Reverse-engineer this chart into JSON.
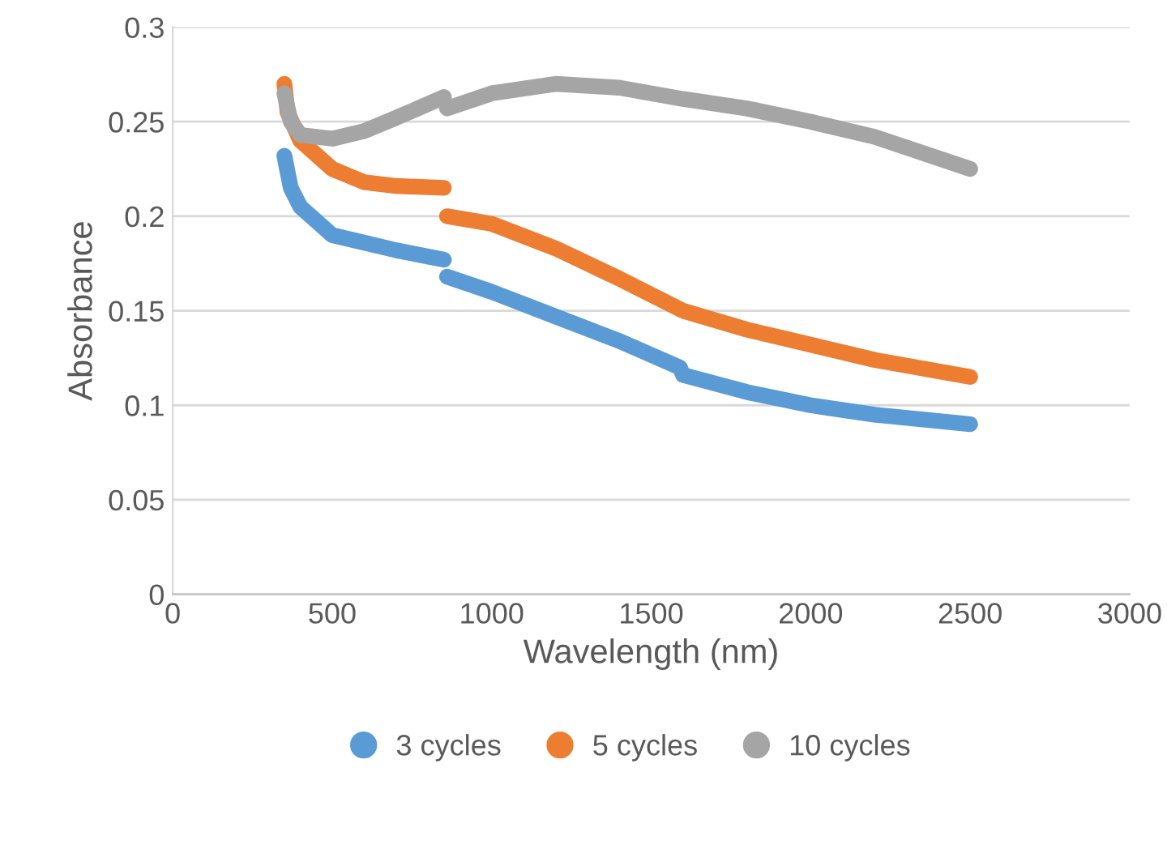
{
  "chart_data": {
    "type": "line",
    "xlabel": "Wavelength (nm)",
    "ylabel": "Absorbance",
    "xlim": [
      0,
      3000
    ],
    "xticks": [
      0,
      500,
      1000,
      1500,
      2000,
      2500,
      3000
    ],
    "ylim": [
      0,
      0.3
    ],
    "yticks": [
      0,
      0.05,
      0.1,
      0.15,
      0.2,
      0.25,
      0.3
    ],
    "grid": "y",
    "legend": "bottom",
    "line_style": "solid",
    "series": [
      {
        "name": "3 cycles",
        "color": "#5b9bd5",
        "x": [
          350,
          370,
          400,
          500,
          600,
          700,
          850,
          855,
          860,
          1000,
          1200,
          1400,
          1590,
          1600,
          1800,
          2000,
          2200,
          2500
        ],
        "values": [
          0.232,
          0.215,
          0.205,
          0.19,
          0.186,
          0.182,
          0.177,
          null,
          0.168,
          0.16,
          0.147,
          0.134,
          0.12,
          0.116,
          0.107,
          0.1,
          0.095,
          0.09
        ]
      },
      {
        "name": "5 cycles",
        "color": "#ed7d31",
        "x": [
          350,
          360,
          400,
          500,
          600,
          700,
          850,
          855,
          860,
          1000,
          1200,
          1400,
          1600,
          1800,
          2000,
          2200,
          2500
        ],
        "values": [
          0.27,
          0.255,
          0.24,
          0.225,
          0.218,
          0.216,
          0.215,
          null,
          0.2,
          0.196,
          0.183,
          0.167,
          0.15,
          0.14,
          0.132,
          0.124,
          0.115
        ]
      },
      {
        "name": "10 cycles",
        "color": "#a5a5a5",
        "x": [
          350,
          370,
          400,
          500,
          600,
          700,
          850,
          855,
          860,
          1000,
          1200,
          1400,
          1600,
          1800,
          2000,
          2200,
          2500
        ],
        "values": [
          0.265,
          0.25,
          0.243,
          0.241,
          0.245,
          0.252,
          0.263,
          null,
          0.257,
          0.265,
          0.27,
          0.268,
          0.262,
          0.257,
          0.25,
          0.242,
          0.225
        ]
      }
    ]
  }
}
